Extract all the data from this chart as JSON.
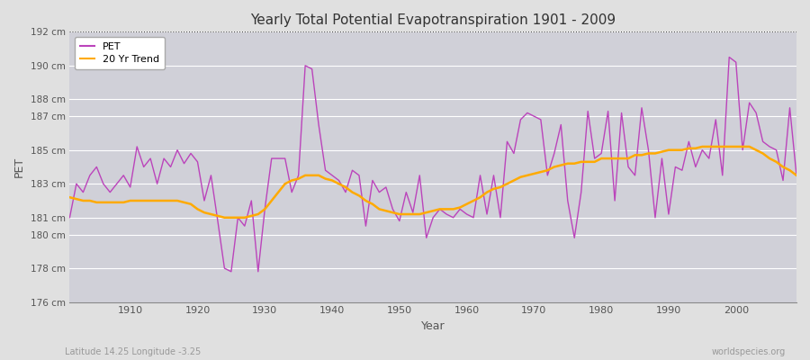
{
  "title": "Yearly Total Potential Evapotranspiration 1901 - 2009",
  "xlabel": "Year",
  "ylabel": "PET",
  "subtitle_lat": "Latitude 14.25 Longitude -3.25",
  "watermark": "worldspecies.org",
  "pet_color": "#bb44bb",
  "trend_color": "#ffaa00",
  "bg_color": "#e0e0e0",
  "plot_bg_color": "#d0d0d8",
  "grid_color": "#ffffff",
  "ylim_min": 176,
  "ylim_max": 192,
  "yticks": [
    176,
    178,
    180,
    181,
    183,
    185,
    187,
    188,
    190,
    192
  ],
  "ytick_labels": [
    "176 cm",
    "178 cm",
    "180 cm",
    "181 cm",
    "183 cm",
    "185 cm",
    "187 cm",
    "188 cm",
    "190 cm",
    "192 cm"
  ],
  "years": [
    1901,
    1902,
    1903,
    1904,
    1905,
    1906,
    1907,
    1908,
    1909,
    1910,
    1911,
    1912,
    1913,
    1914,
    1915,
    1916,
    1917,
    1918,
    1919,
    1920,
    1921,
    1922,
    1923,
    1924,
    1925,
    1926,
    1927,
    1928,
    1929,
    1930,
    1931,
    1932,
    1933,
    1934,
    1935,
    1936,
    1937,
    1938,
    1939,
    1940,
    1941,
    1942,
    1943,
    1944,
    1945,
    1946,
    1947,
    1948,
    1949,
    1950,
    1951,
    1952,
    1953,
    1954,
    1955,
    1956,
    1957,
    1958,
    1959,
    1960,
    1961,
    1962,
    1963,
    1964,
    1965,
    1966,
    1967,
    1968,
    1969,
    1970,
    1971,
    1972,
    1973,
    1974,
    1975,
    1976,
    1977,
    1978,
    1979,
    1980,
    1981,
    1982,
    1983,
    1984,
    1985,
    1986,
    1987,
    1988,
    1989,
    1990,
    1991,
    1992,
    1993,
    1994,
    1995,
    1996,
    1997,
    1998,
    1999,
    2000,
    2001,
    2002,
    2003,
    2004,
    2005,
    2006,
    2007,
    2008,
    2009
  ],
  "pet": [
    181.0,
    183.0,
    182.5,
    183.5,
    184.0,
    183.0,
    182.5,
    183.0,
    183.5,
    182.8,
    185.2,
    184.0,
    184.5,
    183.0,
    184.5,
    184.0,
    185.0,
    184.2,
    184.8,
    184.3,
    182.0,
    183.5,
    180.8,
    178.0,
    177.8,
    181.0,
    180.5,
    182.0,
    177.8,
    181.5,
    184.5,
    184.5,
    184.5,
    182.5,
    183.5,
    190.0,
    189.8,
    186.5,
    183.8,
    183.5,
    183.2,
    182.5,
    183.8,
    183.5,
    180.5,
    183.2,
    182.5,
    182.8,
    181.5,
    180.8,
    182.5,
    181.3,
    183.5,
    179.8,
    181.0,
    181.5,
    181.2,
    181.0,
    181.5,
    181.2,
    181.0,
    183.5,
    181.2,
    183.5,
    181.0,
    185.5,
    184.8,
    186.8,
    187.2,
    187.0,
    186.8,
    183.5,
    184.8,
    186.5,
    182.0,
    179.8,
    182.5,
    187.3,
    184.5,
    184.8,
    187.3,
    182.0,
    187.2,
    184.0,
    183.5,
    187.5,
    185.0,
    181.0,
    184.5,
    181.2,
    184.0,
    183.8,
    185.5,
    184.0,
    185.0,
    184.5,
    186.8,
    183.5,
    190.5,
    190.2,
    185.0,
    187.8,
    187.2,
    185.5,
    185.2,
    185.0,
    183.2,
    187.5,
    183.5
  ],
  "trend": [
    182.2,
    182.1,
    182.0,
    182.0,
    181.9,
    181.9,
    181.9,
    181.9,
    181.9,
    182.0,
    182.0,
    182.0,
    182.0,
    182.0,
    182.0,
    182.0,
    182.0,
    181.9,
    181.8,
    181.5,
    181.3,
    181.2,
    181.1,
    181.0,
    181.0,
    181.0,
    181.0,
    181.1,
    181.2,
    181.5,
    182.0,
    182.5,
    183.0,
    183.2,
    183.3,
    183.5,
    183.5,
    183.5,
    183.3,
    183.2,
    183.0,
    182.8,
    182.5,
    182.3,
    182.0,
    181.8,
    181.5,
    181.4,
    181.3,
    181.2,
    181.2,
    181.2,
    181.2,
    181.3,
    181.4,
    181.5,
    181.5,
    181.5,
    181.6,
    181.8,
    182.0,
    182.2,
    182.5,
    182.7,
    182.8,
    183.0,
    183.2,
    183.4,
    183.5,
    183.6,
    183.7,
    183.8,
    184.0,
    184.1,
    184.2,
    184.2,
    184.3,
    184.3,
    184.3,
    184.5,
    184.5,
    184.5,
    184.5,
    184.5,
    184.7,
    184.7,
    184.8,
    184.8,
    184.9,
    185.0,
    185.0,
    185.0,
    185.1,
    185.1,
    185.2,
    185.2,
    185.2,
    185.2,
    185.2,
    185.2,
    185.2,
    185.2,
    185.0,
    184.8,
    184.5,
    184.3,
    184.0,
    183.8,
    183.5
  ],
  "xticks": [
    1910,
    1920,
    1930,
    1940,
    1950,
    1960,
    1970,
    1980,
    1990,
    2000
  ]
}
